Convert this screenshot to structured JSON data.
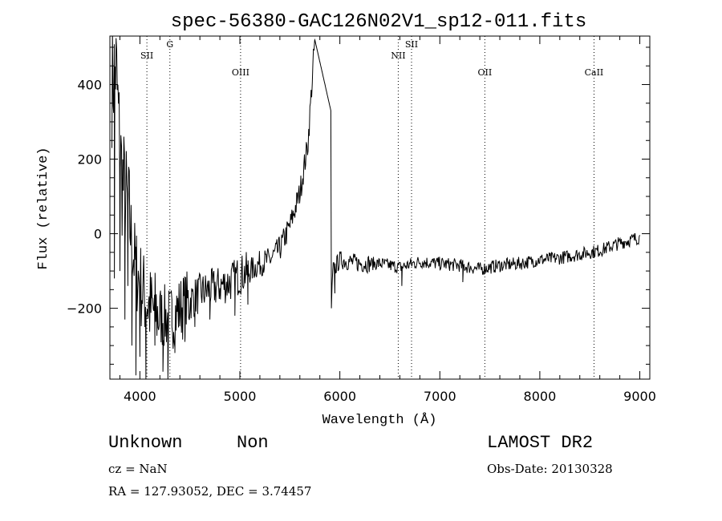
{
  "chart_data": {
    "type": "line",
    "title": "spec-56380-GAC126N02V1_sp12-011.fits",
    "xlabel": "Wavelength (Å)",
    "ylabel": "Flux (relative)",
    "xlim": [
      3700,
      9100
    ],
    "ylim": [
      -390,
      530
    ],
    "x_ticks": [
      4000,
      5000,
      6000,
      7000,
      8000,
      9000
    ],
    "x_tick_labels": [
      "4000",
      "5000",
      "6000",
      "7000",
      "8000",
      "9000"
    ],
    "y_ticks": [
      -200,
      0,
      200,
      400
    ],
    "y_tick_labels": [
      "−200",
      "0",
      "200",
      "400"
    ],
    "grid": false,
    "line_color": "#000000",
    "lines": [
      {
        "label": "SII",
        "x": 4070,
        "label_y": 470
      },
      {
        "label": "G",
        "x": 4300,
        "label_y": 500
      },
      {
        "label": "OIII",
        "x": 5007,
        "label_y": 425
      },
      {
        "label": "NII",
        "x": 6584,
        "label_y": 470
      },
      {
        "label": "SII",
        "x": 6717,
        "label_y": 500
      },
      {
        "label": "OII",
        "x": 7450,
        "label_y": 425
      },
      {
        "label": "CaII",
        "x": 8542,
        "label_y": 425
      }
    ],
    "series": [
      {
        "anchors": [
          [
            3720,
            400
          ],
          [
            3760,
            450
          ],
          [
            3790,
            280
          ],
          [
            3820,
            150
          ],
          [
            3850,
            100
          ],
          [
            3900,
            20
          ],
          [
            3950,
            -80
          ],
          [
            4000,
            -130
          ],
          [
            4050,
            -170
          ],
          [
            4100,
            -200
          ],
          [
            4200,
            -220
          ],
          [
            4300,
            -230
          ],
          [
            4400,
            -200
          ],
          [
            4500,
            -180
          ],
          [
            4600,
            -160
          ],
          [
            4700,
            -150
          ],
          [
            4800,
            -140
          ],
          [
            4900,
            -130
          ],
          [
            5000,
            -110
          ],
          [
            5100,
            -100
          ],
          [
            5200,
            -80
          ],
          [
            5300,
            -70
          ],
          [
            5400,
            -40
          ],
          [
            5500,
            20
          ],
          [
            5600,
            110
          ],
          [
            5680,
            240
          ],
          [
            5750,
            520
          ],
          [
            5910,
            330
          ],
          [
            5915,
            -200
          ],
          [
            5930,
            -100
          ],
          [
            6000,
            -70
          ],
          [
            6200,
            -80
          ],
          [
            6400,
            -80
          ],
          [
            6600,
            -90
          ],
          [
            6800,
            -75
          ],
          [
            7000,
            -80
          ],
          [
            7200,
            -85
          ],
          [
            7400,
            -95
          ],
          [
            7600,
            -85
          ],
          [
            7800,
            -80
          ],
          [
            8000,
            -70
          ],
          [
            8200,
            -65
          ],
          [
            8400,
            -55
          ],
          [
            8600,
            -45
          ],
          [
            8800,
            -25
          ],
          [
            9000,
            -10
          ]
        ],
        "noise_points": [
          [
            3745,
            -120
          ],
          [
            3800,
            -100
          ],
          [
            3850,
            -230
          ],
          [
            3880,
            -140
          ],
          [
            3920,
            -300
          ],
          [
            3960,
            -380
          ],
          [
            4000,
            -330
          ],
          [
            4060,
            -390
          ],
          [
            4150,
            -300
          ],
          [
            4230,
            -370
          ],
          [
            4280,
            -390
          ],
          [
            4320,
            -250
          ],
          [
            4350,
            -320
          ],
          [
            4450,
            -290
          ],
          [
            4550,
            -250
          ],
          [
            4700,
            -230
          ],
          [
            4950,
            -220
          ],
          [
            5080,
            -190
          ],
          [
            5950,
            -160
          ],
          [
            6620,
            -140
          ],
          [
            7230,
            -130
          ]
        ]
      }
    ]
  },
  "footer": {
    "class_label": "Unknown",
    "subclass_label": "Non",
    "cz": "cz = NaN",
    "radec": "RA = 127.93052, DEC =   3.74457",
    "survey": "LAMOST DR2",
    "obs_date": "Obs-Date: 20130328"
  }
}
